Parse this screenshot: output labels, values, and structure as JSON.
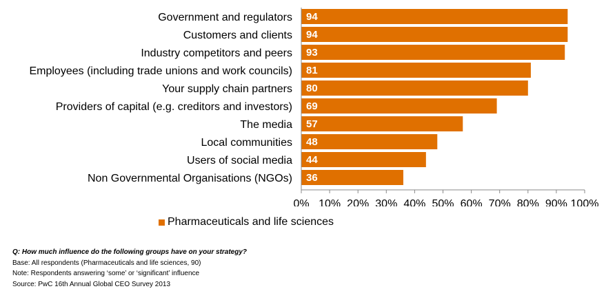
{
  "chart_data": {
    "type": "bar",
    "orientation": "horizontal",
    "categories": [
      "Government and regulators",
      "Customers and clients",
      "Industry competitors and peers",
      "Employees (including trade unions and work councils)",
      "Your supply chain partners",
      "Providers of capital (e.g. creditors and investors)",
      "The media",
      "Local communities",
      "Users of social media",
      "Non Governmental Organisations (NGOs)"
    ],
    "series": [
      {
        "name": "Pharmaceuticals and life sciences",
        "values": [
          94,
          94,
          93,
          81,
          80,
          69,
          57,
          48,
          44,
          36
        ],
        "color": "#E07000"
      }
    ],
    "data_labels": [
      "94",
      "94",
      "93",
      "81",
      "80",
      "69",
      "57",
      "48",
      "44",
      "36"
    ],
    "x_ticks": [
      "0%",
      "10%",
      "20%",
      "30%",
      "40%",
      "50%",
      "60%",
      "70%",
      "80%",
      "90%",
      "100%"
    ],
    "xlim": [
      0,
      100
    ],
    "grid": false,
    "legend_position": "bottom"
  },
  "notes": {
    "question": "Q: How much influence do the following groups have on your strategy?",
    "base": "Base: All respondents (Pharmaceuticals and life sciences, 90)",
    "note": "Note: Respondents answering ‘some’ or ‘significant’ influence",
    "source": "Source: PwC 16th Annual Global CEO Survey 2013"
  }
}
